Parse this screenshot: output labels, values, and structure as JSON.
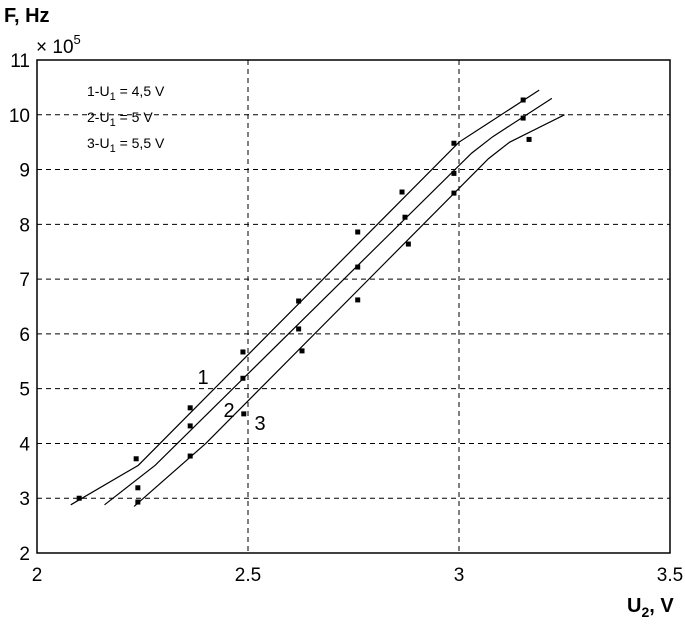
{
  "chart_data": {
    "type": "scatter",
    "ytitle": "F, Hz",
    "y_multiplier": {
      "base": "× 10",
      "exp": "5"
    },
    "xlabel": {
      "text": "U",
      "sub": "2",
      "suffix": ", V"
    },
    "xlim": [
      2,
      3.5
    ],
    "ylim": [
      2,
      11
    ],
    "xticks": [
      2,
      2.5,
      3,
      3.5
    ],
    "yticks": [
      2,
      3,
      4,
      5,
      6,
      7,
      8,
      9,
      10,
      11
    ],
    "grid": true,
    "legend": [
      {
        "prefix": "1-U",
        "sub": "1",
        "suffix": " = 4,5 V"
      },
      {
        "prefix": "2-U",
        "sub": "1",
        "suffix": " = 5 V"
      },
      {
        "prefix": "3-U",
        "sub": "1",
        "suffix": " = 5,5 V"
      }
    ],
    "series": [
      {
        "label": "1",
        "color": "#000000",
        "x": [
          2.1,
          2.235,
          2.363,
          2.488,
          2.62,
          2.76,
          2.865,
          2.988,
          3.152
        ],
        "values": [
          3.0,
          3.72,
          4.65,
          5.67,
          6.6,
          7.86,
          8.59,
          9.48,
          10.27
        ],
        "curve": {
          "x": [
            2.08,
            2.24,
            3.0,
            3.06,
            3.19
          ],
          "values": [
            2.88,
            3.6,
            9.5,
            9.8,
            10.45
          ]
        }
      },
      {
        "label": "2",
        "color": "#000000",
        "x": [
          2.239,
          2.363,
          2.488,
          2.62,
          2.76,
          2.872,
          2.988,
          3.152
        ],
        "values": [
          3.19,
          4.32,
          5.19,
          6.09,
          7.22,
          8.13,
          8.93,
          9.94
        ],
        "curve": {
          "x": [
            2.16,
            2.28,
            3.03,
            3.08,
            3.22
          ],
          "values": [
            2.88,
            3.6,
            9.3,
            9.6,
            10.3
          ]
        }
      },
      {
        "label": "3",
        "color": "#000000",
        "x": [
          2.239,
          2.363,
          2.49,
          2.628,
          2.76,
          2.88,
          2.988,
          3.166
        ],
        "values": [
          2.93,
          3.77,
          4.54,
          5.69,
          6.62,
          7.64,
          8.57,
          9.55
        ],
        "curve": {
          "x": [
            2.23,
            2.4,
            3.07,
            3.12,
            3.25
          ],
          "values": [
            2.85,
            4.0,
            9.2,
            9.5,
            10.0
          ]
        }
      }
    ]
  }
}
